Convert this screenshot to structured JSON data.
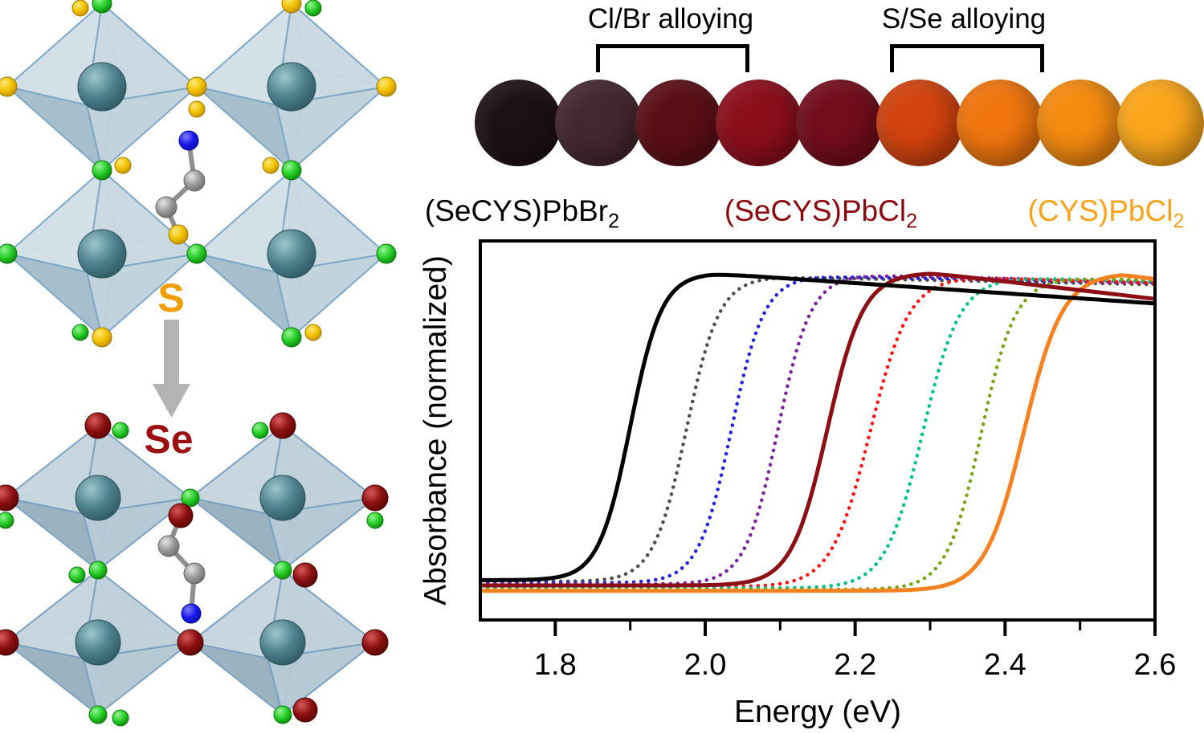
{
  "left_panel": {
    "s_label": "S",
    "se_label": "Se",
    "s_label_color": "#f09e00",
    "se_label_color": "#9b1111",
    "arrow_color": "#b3b3b3",
    "atom_colors": {
      "sulfur_yellow": "#f2c200",
      "halide_green": "#26cc26",
      "selenium_dark_red": "#8b1010",
      "lead_teal": "#4e828e",
      "carbon_gray": "#9a9a9a",
      "nitrogen_blue": "#1a1aee",
      "octahedron_blue": "#b4c9d4"
    }
  },
  "top_panel": {
    "group1_label": "Cl/Br alloying",
    "group2_label": "S/Se alloying",
    "sample_circles": [
      "#1e1114",
      "#452730",
      "#5c0e16",
      "#8c0e1b",
      "#740c1c",
      "#d2430e",
      "#f1760e",
      "#f58b10",
      "#fba71c"
    ],
    "formula_labels": [
      {
        "text": "(SeCYS)PbBr",
        "sub": "2",
        "color": "#000000"
      },
      {
        "text": "(SeCYS)PbCl",
        "sub": "2",
        "color": "#8b0a10"
      },
      {
        "text": "(CYS)PbCl",
        "sub": "2",
        "color": "#faa21b"
      }
    ]
  },
  "chart_data": {
    "type": "line",
    "title": "",
    "xlabel": "Energy (eV)",
    "ylabel": "Absorbance (normalized)",
    "xlim": [
      1.7,
      2.6
    ],
    "ylim": [
      0,
      1
    ],
    "x_major_ticks": [
      1.8,
      2.0,
      2.2,
      2.4,
      2.6
    ],
    "x_minor_ticks": [
      1.9,
      2.1,
      2.3,
      2.5
    ],
    "grid": false,
    "legend": "none",
    "description": "Normalized absorbance spectra; sigmoidal absorption edges shifting from 1.90 eV ((SeCYS)PbBr2, black solid) through Cl/Br alloys (dotted) to (SeCYS)PbCl2 (dark red solid, 2.16 eV), then S/Se alloys (dotted) to (CYS)PbCl2 (orange solid, 2.43 eV).",
    "baseline_start": 0.105,
    "baseline_step": -0.0035,
    "series": [
      {
        "name": "(SeCYS)PbBr2",
        "color": "#000000",
        "line_style": "solid",
        "absorption_edge_ev": 1.9,
        "rise_width_ev": 0.021,
        "peak_ev": 2.005,
        "plateau": 0.915,
        "end_value": 0.835
      },
      {
        "name": "Cl/Br alloy 1",
        "color": "#4d4d4d",
        "line_style": "dotted",
        "absorption_edge_ev": 1.975,
        "rise_width_ev": 0.022,
        "peak_ev": 2.08,
        "plateau": 0.905,
        "end_value": 0.885
      },
      {
        "name": "Cl/Br alloy 2",
        "color": "#2222dd",
        "line_style": "dotted",
        "absorption_edge_ev": 2.035,
        "rise_width_ev": 0.022,
        "peak_ev": 2.14,
        "plateau": 0.907,
        "end_value": 0.889
      },
      {
        "name": "Cl/Br alloy 3",
        "color": "#7b219e",
        "line_style": "dotted",
        "absorption_edge_ev": 2.097,
        "rise_width_ev": 0.022,
        "peak_ev": 2.2,
        "plateau": 0.91,
        "end_value": 0.892
      },
      {
        "name": "(SeCYS)PbCl2",
        "color": "#8b0f14",
        "line_style": "solid",
        "absorption_edge_ev": 2.163,
        "rise_width_ev": 0.024,
        "peak_ev": 2.3,
        "plateau": 0.916,
        "end_value": 0.847
      },
      {
        "name": "S/Se alloy 1",
        "color": "#ff1111",
        "line_style": "dotted",
        "absorption_edge_ev": 2.22,
        "rise_width_ev": 0.026,
        "peak_ev": 2.33,
        "plateau": 0.905,
        "end_value": 0.889
      },
      {
        "name": "S/Se alloy 2",
        "color": "#00c184",
        "line_style": "dotted",
        "absorption_edge_ev": 2.29,
        "rise_width_ev": 0.025,
        "peak_ev": 2.4,
        "plateau": 0.903,
        "end_value": 0.894
      },
      {
        "name": "S/Se alloy 3",
        "color": "#76a414",
        "line_style": "dotted",
        "absorption_edge_ev": 2.368,
        "rise_width_ev": 0.023,
        "peak_ev": 2.47,
        "plateau": 0.902,
        "end_value": 0.897
      },
      {
        "name": "(CYS)PbCl2",
        "color": "#f58220",
        "line_style": "solid",
        "absorption_edge_ev": 2.425,
        "rise_width_ev": 0.026,
        "peak_ev": 2.555,
        "plateau": 0.915,
        "end_value": 0.9
      }
    ]
  }
}
